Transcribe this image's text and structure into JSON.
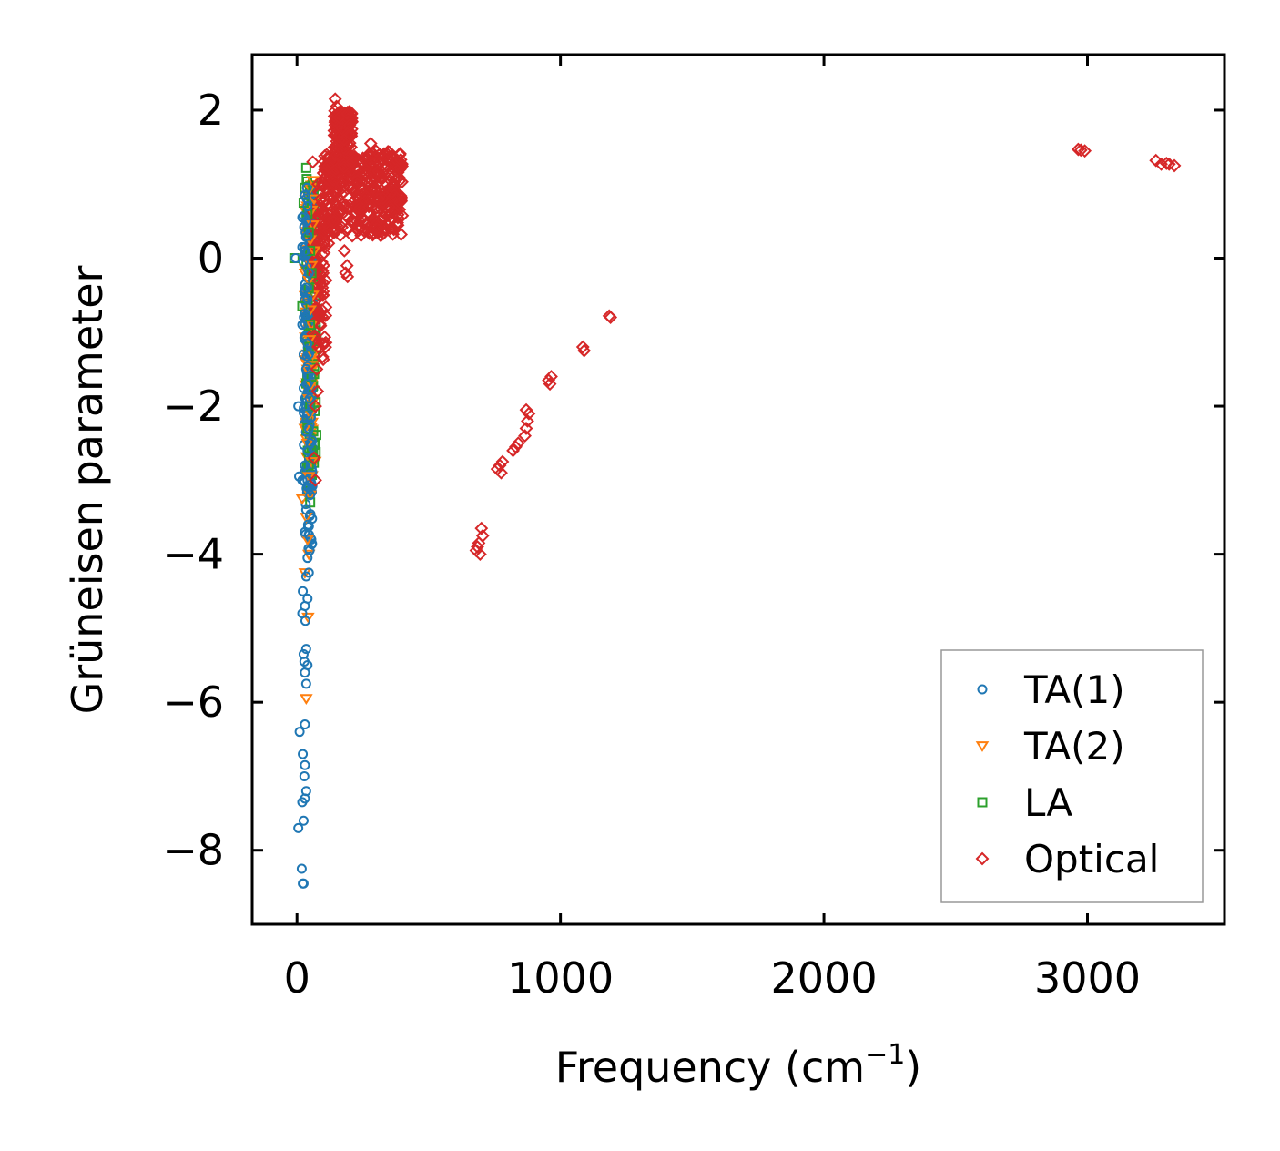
{
  "chart_data": {
    "type": "scatter",
    "title": "",
    "xlabel": "Frequency (cm",
    "xlabel_sup": "−1",
    "xlabel_tail": ")",
    "ylabel": "Grüneisen parameter",
    "xlim": [
      -170,
      3520
    ],
    "ylim": [
      -9.0,
      2.75
    ],
    "xticks": [
      0,
      1000,
      2000,
      3000
    ],
    "xtick_labels": [
      "0",
      "1000",
      "2000",
      "3000"
    ],
    "yticks": [
      2,
      0,
      -2,
      -4,
      -6,
      -8
    ],
    "ytick_labels": [
      "2",
      "0",
      "−2",
      "−4",
      "−6",
      "−8"
    ],
    "grid": false,
    "legend_position": "bottom-right",
    "series": [
      {
        "name": "TA(1)",
        "marker": "circle",
        "color": "#1f77b4",
        "points": [
          [
            22,
            -8.45
          ],
          [
            25,
            -8.45
          ],
          [
            18,
            -8.25
          ],
          [
            5,
            -7.7
          ],
          [
            20,
            -7.35
          ],
          [
            30,
            -7.3
          ],
          [
            35,
            -7.2
          ],
          [
            25,
            -7.6
          ],
          [
            28,
            -7.0
          ],
          [
            30,
            -6.85
          ],
          [
            22,
            -6.7
          ],
          [
            10,
            -6.4
          ],
          [
            30,
            -6.3
          ],
          [
            35,
            -5.75
          ],
          [
            30,
            -5.6
          ],
          [
            28,
            -5.45
          ],
          [
            25,
            -5.35
          ],
          [
            35,
            -5.28
          ],
          [
            40,
            -5.5
          ],
          [
            32,
            -4.9
          ],
          [
            20,
            -4.8
          ],
          [
            30,
            -4.7
          ],
          [
            40,
            -4.6
          ],
          [
            22,
            -4.5
          ],
          [
            35,
            -4.3
          ],
          [
            45,
            -4.25
          ],
          [
            40,
            -4.05
          ],
          [
            48,
            -3.95
          ],
          [
            30,
            -3.7
          ],
          [
            42,
            -3.6
          ],
          [
            35,
            -3.4
          ],
          [
            50,
            -3.2
          ],
          [
            45,
            -3.1
          ],
          [
            40,
            -3.0
          ],
          [
            8,
            -2.95
          ],
          [
            20,
            -3.0
          ],
          [
            55,
            -3.05
          ],
          [
            30,
            -2.8
          ],
          [
            40,
            -2.6
          ],
          [
            50,
            -2.5
          ],
          [
            45,
            -2.3
          ],
          [
            38,
            -2.1
          ],
          [
            5,
            -2.0
          ],
          [
            48,
            -1.9
          ],
          [
            40,
            -1.7
          ],
          [
            35,
            -1.5
          ],
          [
            45,
            -1.3
          ],
          [
            40,
            -1.15
          ],
          [
            20,
            -0.9
          ],
          [
            30,
            -0.75
          ],
          [
            40,
            -0.55
          ],
          [
            35,
            -0.4
          ],
          [
            45,
            -0.2
          ],
          [
            25,
            -0.05
          ],
          [
            -5,
            0.0
          ],
          [
            30,
            0.1
          ],
          [
            20,
            0.15
          ],
          [
            40,
            0.3
          ],
          [
            35,
            0.5
          ],
          [
            20,
            0.55
          ],
          [
            40,
            0.7
          ],
          [
            30,
            0.85
          ],
          [
            38,
            0.95
          ]
        ]
      },
      {
        "name": "TA(2)",
        "marker": "triangle-down",
        "color": "#ff7f0e",
        "points": [
          [
            35,
            -5.95
          ],
          [
            42,
            -4.85
          ],
          [
            30,
            -4.25
          ],
          [
            45,
            -4.0
          ],
          [
            40,
            -3.8
          ],
          [
            35,
            -3.5
          ],
          [
            50,
            -3.2
          ],
          [
            20,
            -3.25
          ],
          [
            45,
            -2.95
          ],
          [
            55,
            -2.75
          ],
          [
            40,
            -2.5
          ],
          [
            30,
            -2.3
          ],
          [
            50,
            -2.1
          ],
          [
            45,
            -1.9
          ],
          [
            55,
            -1.7
          ],
          [
            40,
            -1.5
          ],
          [
            60,
            -1.3
          ],
          [
            48,
            -1.1
          ],
          [
            55,
            -0.9
          ],
          [
            50,
            -0.7
          ],
          [
            60,
            -0.5
          ],
          [
            45,
            -0.3
          ],
          [
            55,
            -0.1
          ],
          [
            65,
            0.1
          ],
          [
            50,
            0.25
          ],
          [
            60,
            0.45
          ],
          [
            55,
            0.65
          ],
          [
            65,
            0.8
          ],
          [
            50,
            0.95
          ],
          [
            60,
            1.05
          ]
        ]
      },
      {
        "name": "LA",
        "marker": "square",
        "color": "#2ca02c",
        "points": [
          [
            35,
            1.22
          ],
          [
            30,
            0.95
          ],
          [
            25,
            0.75
          ],
          [
            40,
            0.6
          ],
          [
            -10,
            0.0
          ],
          [
            45,
            0.35
          ],
          [
            50,
            0.1
          ],
          [
            20,
            -0.65
          ],
          [
            45,
            -0.4
          ],
          [
            55,
            -0.2
          ],
          [
            50,
            -0.9
          ],
          [
            45,
            -1.2
          ],
          [
            55,
            -1.6
          ],
          [
            50,
            -2.0
          ],
          [
            40,
            -2.3
          ],
          [
            55,
            -2.6
          ],
          [
            45,
            -2.8
          ],
          [
            50,
            -3.3
          ]
        ]
      },
      {
        "name": "Optical",
        "marker": "diamond",
        "color": "#d62728",
        "points": [
          [
            145,
            2.15
          ],
          [
            150,
            2.05
          ],
          [
            160,
            1.9
          ],
          [
            170,
            1.75
          ],
          [
            190,
            1.95
          ],
          [
            200,
            1.8
          ],
          [
            180,
            1.6
          ],
          [
            280,
            1.55
          ],
          [
            300,
            1.45
          ],
          [
            250,
            1.35
          ],
          [
            60,
            1.3
          ],
          [
            150,
            1.4
          ],
          [
            120,
            1.25
          ],
          [
            100,
            1.15
          ],
          [
            210,
            1.3
          ],
          [
            260,
            1.2
          ],
          [
            320,
            1.1
          ],
          [
            340,
            1.0
          ],
          [
            370,
            0.85
          ],
          [
            390,
            0.75
          ],
          [
            80,
            1.0
          ],
          [
            110,
            0.95
          ],
          [
            140,
            1.05
          ],
          [
            170,
            1.0
          ],
          [
            200,
            0.95
          ],
          [
            230,
            1.05
          ],
          [
            290,
            0.95
          ],
          [
            310,
            0.8
          ],
          [
            350,
            0.7
          ],
          [
            330,
            0.55
          ],
          [
            300,
            0.45
          ],
          [
            270,
            0.6
          ],
          [
            240,
            0.5
          ],
          [
            90,
            0.8
          ],
          [
            130,
            0.7
          ],
          [
            160,
            0.6
          ],
          [
            190,
            0.4
          ],
          [
            210,
            0.3
          ],
          [
            180,
            0.1
          ],
          [
            190,
            -0.1
          ],
          [
            185,
            -0.2
          ],
          [
            192,
            -0.25
          ],
          [
            95,
            -0.7
          ],
          [
            85,
            -0.8
          ],
          [
            100,
            -0.5
          ],
          [
            110,
            -0.3
          ],
          [
            120,
            0.2
          ],
          [
            140,
            0.5
          ],
          [
            75,
            -1.5
          ],
          [
            70,
            -2.0
          ],
          [
            65,
            -2.7
          ],
          [
            70,
            -3.0
          ],
          [
            80,
            -1.2
          ],
          [
            78,
            -1.8
          ],
          [
            3330,
            1.25
          ],
          [
            3310,
            1.27
          ],
          [
            3300,
            1.28
          ],
          [
            3280,
            1.27
          ],
          [
            3260,
            1.32
          ],
          [
            2990,
            1.45
          ],
          [
            2975,
            1.46
          ],
          [
            2965,
            1.47
          ],
          [
            1190,
            -0.8
          ],
          [
            1185,
            -0.78
          ],
          [
            1085,
            -1.2
          ],
          [
            1090,
            -1.25
          ],
          [
            965,
            -1.6
          ],
          [
            960,
            -1.7
          ],
          [
            955,
            -1.65
          ],
          [
            880,
            -2.1
          ],
          [
            875,
            -2.2
          ],
          [
            870,
            -2.3
          ],
          [
            865,
            -2.4
          ],
          [
            870,
            -2.05
          ],
          [
            840,
            -2.5
          ],
          [
            830,
            -2.55
          ],
          [
            820,
            -2.6
          ],
          [
            780,
            -2.75
          ],
          [
            770,
            -2.8
          ],
          [
            760,
            -2.85
          ],
          [
            775,
            -2.9
          ],
          [
            700,
            -3.65
          ],
          [
            705,
            -3.75
          ],
          [
            690,
            -3.85
          ],
          [
            685,
            -3.9
          ],
          [
            680,
            -3.95
          ],
          [
            695,
            -4.0
          ]
        ]
      }
    ],
    "clusters": [
      {
        "series": "Optical",
        "x": [
          95,
          400
        ],
        "y": [
          0.3,
          1.45
        ],
        "count": 420
      },
      {
        "series": "Optical",
        "x": [
          140,
          210
        ],
        "y": [
          1.2,
          2.0
        ],
        "count": 140
      },
      {
        "series": "Optical",
        "x": [
          60,
          110
        ],
        "y": [
          -1.5,
          0.9
        ],
        "count": 90
      },
      {
        "series": "TA(1)",
        "x": [
          25,
          60
        ],
        "y": [
          -4.0,
          0.9
        ],
        "count": 140
      },
      {
        "series": "TA(2)",
        "x": [
          30,
          70
        ],
        "y": [
          -3.0,
          1.0
        ],
        "count": 140
      },
      {
        "series": "LA",
        "x": [
          35,
          75
        ],
        "y": [
          -3.2,
          1.1
        ],
        "count": 100
      }
    ]
  }
}
